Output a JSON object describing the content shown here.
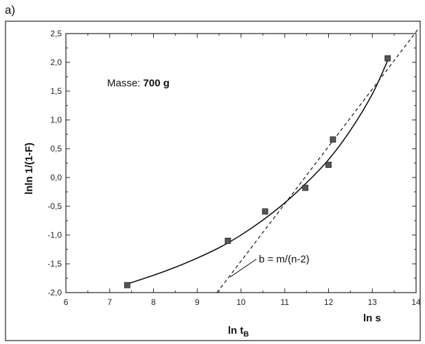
{
  "panel_label": "a)",
  "chart_data": {
    "type": "scatter",
    "xlabel": "ln t",
    "xlabel_subscript": "B",
    "xlabel_secondary": "ln s",
    "ylabel": "lnln 1/(1-F)",
    "xlim": [
      6,
      14
    ],
    "ylim": [
      -2.0,
      2.5
    ],
    "x_ticks": [
      6,
      7,
      8,
      9,
      10,
      11,
      12,
      13,
      14
    ],
    "y_ticks": [
      -2.0,
      -1.5,
      -1.0,
      -0.5,
      0.0,
      0.5,
      1.0,
      1.5,
      2.0,
      2.5
    ],
    "x_tick_labels": [
      "6",
      "7",
      "8",
      "9",
      "10",
      "11",
      "12",
      "13",
      "14"
    ],
    "y_tick_labels": [
      "-2,0",
      "-1,5",
      "-1,0",
      "-0,5",
      "0,0",
      "0,5",
      "1,0",
      "1,5",
      "2,0",
      "2,5"
    ],
    "grid": false,
    "points": {
      "x": [
        7.4,
        9.7,
        10.55,
        11.47,
        12.0,
        12.1,
        13.35
      ],
      "y": [
        -1.87,
        -1.1,
        -0.59,
        -0.18,
        0.22,
        0.66,
        2.07
      ]
    },
    "fit_curve": {
      "x": [
        7.4,
        8.0,
        8.5,
        9.0,
        9.5,
        10.0,
        10.5,
        11.0,
        11.5,
        12.0,
        12.5,
        13.0,
        13.35
      ],
      "y": [
        -1.85,
        -1.7,
        -1.56,
        -1.4,
        -1.22,
        -1.0,
        -0.74,
        -0.44,
        -0.09,
        0.31,
        0.82,
        1.45,
        2.03
      ]
    },
    "tangent_line": {
      "x": [
        9.3,
        14.05
      ],
      "y": [
        -2.15,
        2.58
      ]
    },
    "leader_line": {
      "x": [
        9.75,
        10.35
      ],
      "y": [
        -1.73,
        -1.42
      ]
    },
    "annotations": {
      "mass_label": "Masse: ",
      "mass_value": "700 g",
      "slope_label": "b = m/(n-2)"
    },
    "colors": {
      "marker_fill": "#555555",
      "marker_stroke": "#222222",
      "line": "#111111",
      "frame": "#222222"
    }
  }
}
